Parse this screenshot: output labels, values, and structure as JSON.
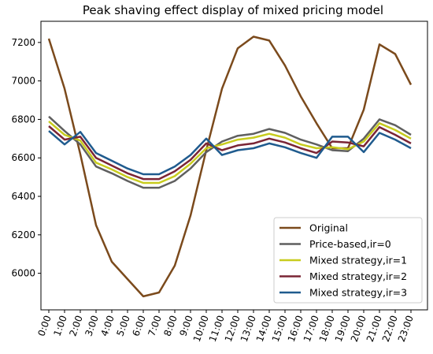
{
  "chart_data": {
    "type": "line",
    "title": "Peak shaving effect display of mixed pricing model",
    "xlabel": "",
    "ylabel": "",
    "categories": [
      "0:00",
      "1:00",
      "2:00",
      "3:00",
      "4:00",
      "5:00",
      "6:00",
      "7:00",
      "8:00",
      "9:00",
      "10:00",
      "11:00",
      "12:00",
      "13:00",
      "14:00",
      "15:00",
      "16:00",
      "17:00",
      "18:00",
      "19:00",
      "20:00",
      "21:00",
      "22:00",
      "23:00"
    ],
    "ylim": [
      5810,
      7310
    ],
    "yticks": [
      6000,
      6200,
      6400,
      6600,
      6800,
      7000,
      7200
    ],
    "grid": false,
    "legend_position": "lower-right",
    "series": [
      {
        "name": "Original",
        "color": "#7b4a1c",
        "values": [
          7220,
          6960,
          6620,
          6250,
          6060,
          5970,
          5880,
          5900,
          6040,
          6300,
          6640,
          6960,
          7170,
          7230,
          7210,
          7080,
          6920,
          6780,
          6650,
          6650,
          6850,
          7190,
          7140,
          6980
        ]
      },
      {
        "name": "Price-based,ir=0",
        "color": "#5f5f5f",
        "values": [
          6815,
          6740,
          6670,
          6555,
          6520,
          6480,
          6445,
          6445,
          6480,
          6545,
          6630,
          6685,
          6715,
          6725,
          6750,
          6730,
          6695,
          6670,
          6640,
          6635,
          6700,
          6800,
          6770,
          6720
        ]
      },
      {
        "name": "Mixed strategy,ir=1",
        "color": "#c8cc1e",
        "values": [
          6790,
          6720,
          6690,
          6575,
          6540,
          6500,
          6470,
          6470,
          6505,
          6570,
          6650,
          6670,
          6695,
          6705,
          6725,
          6705,
          6670,
          6650,
          6655,
          6645,
          6685,
          6780,
          6745,
          6700
        ]
      },
      {
        "name": "Mixed strategy,ir=2",
        "color": "#7a2535",
        "values": [
          6765,
          6695,
          6710,
          6600,
          6560,
          6520,
          6490,
          6490,
          6530,
          6590,
          6675,
          6640,
          6665,
          6675,
          6700,
          6680,
          6650,
          6625,
          6685,
          6680,
          6660,
          6760,
          6720,
          6675
        ]
      },
      {
        "name": "Mixed strategy,ir=3",
        "color": "#1f5b8e",
        "values": [
          6740,
          6670,
          6735,
          6625,
          6585,
          6545,
          6515,
          6515,
          6555,
          6615,
          6700,
          6615,
          6640,
          6650,
          6675,
          6655,
          6625,
          6600,
          6710,
          6710,
          6630,
          6730,
          6695,
          6650
        ]
      }
    ]
  }
}
